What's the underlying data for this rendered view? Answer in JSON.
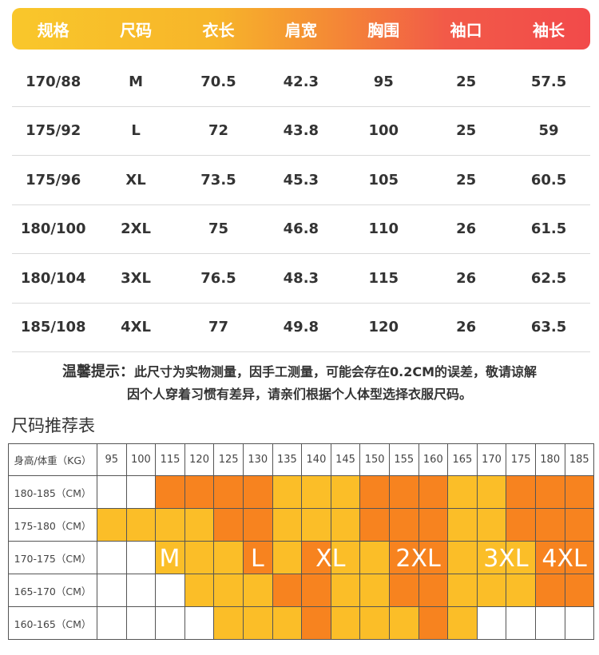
{
  "size_table": {
    "headers": [
      "规格",
      "尺码",
      "衣长",
      "肩宽",
      "胸围",
      "袖口",
      "袖长"
    ],
    "rows": [
      [
        "170/88",
        "M",
        "70.5",
        "42.3",
        "95",
        "25",
        "57.5"
      ],
      [
        "175/92",
        "L",
        "72",
        "43.8",
        "100",
        "25",
        "59"
      ],
      [
        "175/96",
        "XL",
        "73.5",
        "45.3",
        "105",
        "25",
        "60.5"
      ],
      [
        "180/100",
        "2XL",
        "75",
        "46.8",
        "110",
        "26",
        "61.5"
      ],
      [
        "180/104",
        "3XL",
        "76.5",
        "48.3",
        "115",
        "26",
        "62.5"
      ],
      [
        "185/108",
        "4XL",
        "77",
        "49.8",
        "120",
        "26",
        "63.5"
      ]
    ]
  },
  "tip": {
    "label": "温馨提示：",
    "line1": "此尺寸为实物测量，因手工测量，可能会存在0.2CM的误差，敬请谅解",
    "line2": "因个人穿着习惯有差异，请亲们根据个人体型选择衣服尺码。"
  },
  "recommendation": {
    "title": "尺码推荐表",
    "corner_label": "身高/体重（KG）",
    "weights": [
      "95",
      "100",
      "115",
      "120",
      "125",
      "130",
      "135",
      "140",
      "145",
      "150",
      "155",
      "160",
      "165",
      "170",
      "175",
      "180",
      "185"
    ],
    "heights": [
      "180-185（CM）",
      "175-180（CM）",
      "170-175（CM）",
      "165-170（CM）",
      "160-165（CM）"
    ],
    "cells": [
      [
        "w",
        "w",
        "o",
        "o",
        "o",
        "o",
        "y",
        "y",
        "y",
        "o",
        "o",
        "o",
        "y",
        "y",
        "o",
        "o",
        "o"
      ],
      [
        "y",
        "y",
        "y",
        "y",
        "o",
        "o",
        "y",
        "y",
        "y",
        "o",
        "o",
        "o",
        "y",
        "y",
        "o",
        "o",
        "o"
      ],
      [
        "w",
        "w",
        "y",
        "y",
        "y",
        "o",
        "y",
        "o",
        "y",
        "y",
        "o",
        "o",
        "y",
        "y",
        "y",
        "o",
        "o"
      ],
      [
        "w",
        "w",
        "w",
        "y",
        "y",
        "y",
        "o",
        "o",
        "y",
        "y",
        "o",
        "o",
        "y",
        "y",
        "y",
        "o",
        "o"
      ],
      [
        "w",
        "w",
        "w",
        "w",
        "y",
        "y",
        "y",
        "o",
        "y",
        "y",
        "y",
        "o",
        "y",
        "w",
        "w",
        "w",
        "w"
      ]
    ],
    "colors": {
      "y": "#fbbe28",
      "o": "#f7831f",
      "w": "#ffffff"
    },
    "size_labels": [
      "M",
      "L",
      "XL",
      "2XL",
      "3XL",
      "4XL"
    ]
  }
}
